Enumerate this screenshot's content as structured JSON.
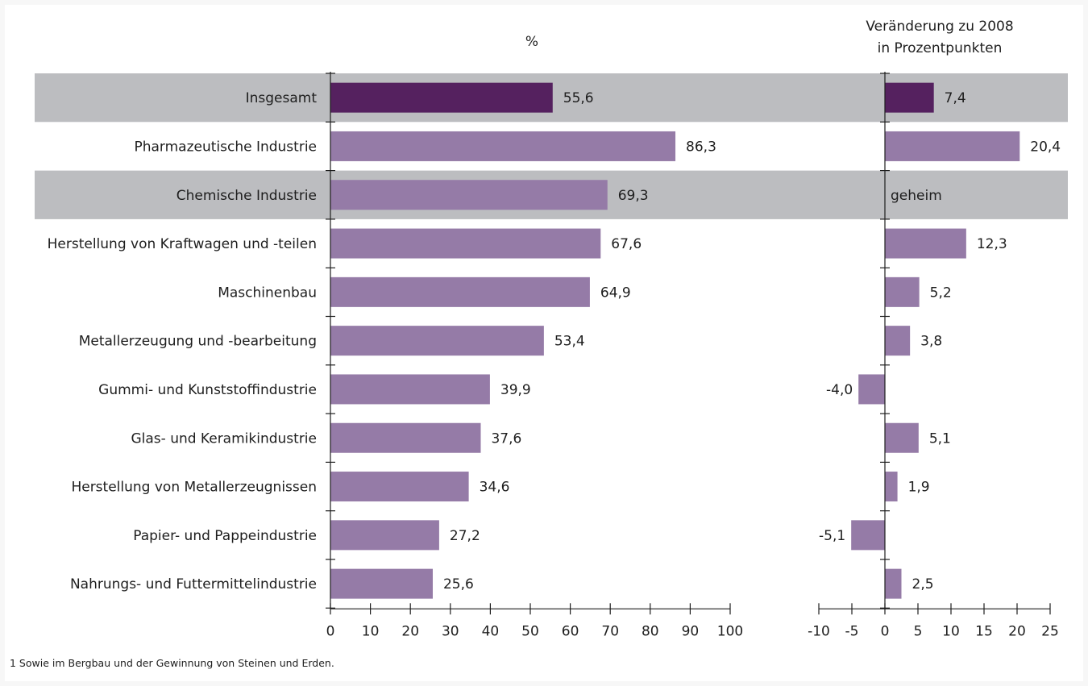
{
  "chart_data": {
    "type": "bar",
    "orientation": "horizontal",
    "categories": [
      "Insgesamt",
      "Pharmazeutische Industrie",
      "Chemische Industrie",
      "Herstellung von Kraftwagen und -teilen",
      "Maschinenbau",
      "Metallerzeugung und -bearbeitung",
      "Gummi- und Kunststoffindustrie",
      "Glas- und Keramikindustrie",
      "Herstellung von Metallerzeugnissen",
      "Papier- und Pappeindustrie",
      "Nahrungs- und Futtermittelindustrie"
    ],
    "highlight_rows": [
      0,
      2
    ],
    "panels": [
      {
        "header": "%",
        "values": [
          55.6,
          86.3,
          69.3,
          67.6,
          64.9,
          53.4,
          39.9,
          37.6,
          34.6,
          27.2,
          25.6
        ],
        "value_labels": [
          "55,6",
          "86,3",
          "69,3",
          "67,6",
          "64,9",
          "53,4",
          "39,9",
          "37,6",
          "34,6",
          "27,2",
          "25,6"
        ],
        "xlim": [
          0,
          100
        ],
        "ticks": [
          "0",
          "10",
          "20",
          "30",
          "40",
          "50",
          "60",
          "70",
          "80",
          "90",
          "100"
        ]
      },
      {
        "header_lines": [
          "Veränderung zu 2008",
          "in Prozentpunkten"
        ],
        "values": [
          7.4,
          20.4,
          null,
          12.3,
          5.2,
          3.8,
          -4.0,
          5.1,
          1.9,
          -5.1,
          2.5
        ],
        "value_labels": [
          "7,4",
          "20,4",
          "geheim",
          "12,3",
          "5,2",
          "3,8",
          "-4,0",
          "5,1",
          "1,9",
          "-5,1",
          "2,5"
        ],
        "xlim": [
          -10,
          25
        ],
        "ticks": [
          "-10",
          "-5",
          "0",
          "5",
          "10",
          "15",
          "20",
          "25"
        ]
      }
    ],
    "colors": {
      "total_bar": "#55215f",
      "bar": "#957ba7",
      "highlight_band": "#bcbdc0",
      "axis": "#1e1e1e"
    }
  },
  "footnote": "1 Sowie im Bergbau und der Gewinnung von Steinen und Erden."
}
